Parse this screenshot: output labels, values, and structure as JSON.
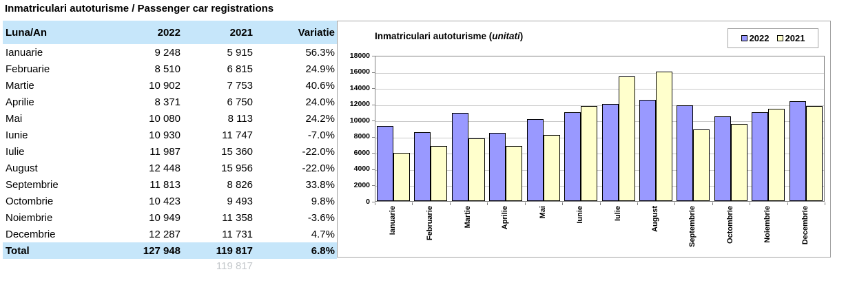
{
  "title": "Inmatriculari autoturisme / Passenger car registrations",
  "table": {
    "columns": [
      "Luna/An",
      "2022",
      "2021",
      "Variatie"
    ],
    "rows": [
      {
        "month": "Ianuarie",
        "y2022": "9 248",
        "y2021": "5 915",
        "variatie": "56.3%"
      },
      {
        "month": "Februarie",
        "y2022": "8 510",
        "y2021": "6 815",
        "variatie": "24.9%"
      },
      {
        "month": "Martie",
        "y2022": "10 902",
        "y2021": "7 753",
        "variatie": "40.6%"
      },
      {
        "month": "Aprilie",
        "y2022": "8 371",
        "y2021": "6 750",
        "variatie": "24.0%"
      },
      {
        "month": "Mai",
        "y2022": "10 080",
        "y2021": "8 113",
        "variatie": "24.2%"
      },
      {
        "month": "Iunie",
        "y2022": "10 930",
        "y2021": "11 747",
        "variatie": "-7.0%"
      },
      {
        "month": "Iulie",
        "y2022": "11 987",
        "y2021": "15 360",
        "variatie": "-22.0%"
      },
      {
        "month": "August",
        "y2022": "12 448",
        "y2021": "15 956",
        "variatie": "-22.0%"
      },
      {
        "month": "Septembrie",
        "y2022": "11 813",
        "y2021": "8 826",
        "variatie": "33.8%"
      },
      {
        "month": "Octombrie",
        "y2022": "10 423",
        "y2021": "9 493",
        "variatie": "9.8%"
      },
      {
        "month": "Noiembrie",
        "y2022": "10 949",
        "y2021": "11 358",
        "variatie": "-3.6%"
      },
      {
        "month": "Decembrie",
        "y2022": "12 287",
        "y2021": "11 731",
        "variatie": "4.7%"
      }
    ],
    "total": {
      "month": "Total",
      "y2022": "127 948",
      "y2021": "119 817",
      "variatie": "6.8%"
    },
    "ghost_value": "119 817"
  },
  "chart_data": {
    "type": "bar",
    "title_prefix": "Inmatriculari autoturisme (",
    "title_italic": "unitati",
    "title_suffix": ")",
    "categories": [
      "Ianuarie",
      "Februarie",
      "Martie",
      "Aprilie",
      "Mai",
      "Iunie",
      "Iulie",
      "August",
      "Septembrie",
      "Octombrie",
      "Noiembrie",
      "Decembrie"
    ],
    "series": [
      {
        "name": "2022",
        "color": "#9999FF",
        "values": [
          9248,
          8510,
          10902,
          8371,
          10080,
          10930,
          11987,
          12448,
          11813,
          10423,
          10949,
          12287
        ]
      },
      {
        "name": "2021",
        "color": "#FFFFCC",
        "values": [
          5915,
          6815,
          7753,
          6750,
          8113,
          11747,
          15360,
          15956,
          8826,
          9493,
          11358,
          11731
        ]
      }
    ],
    "ylim": [
      0,
      18000
    ],
    "ytick_step": 2000,
    "grid": true,
    "legend_position": "top-right"
  },
  "colors": {
    "header_bg": "#C6E6FA",
    "bar_2022": "#9999FF",
    "bar_2021": "#FFFFCC",
    "gridline": "#C9C9C9",
    "ghost_text": "#C4C8CB"
  }
}
